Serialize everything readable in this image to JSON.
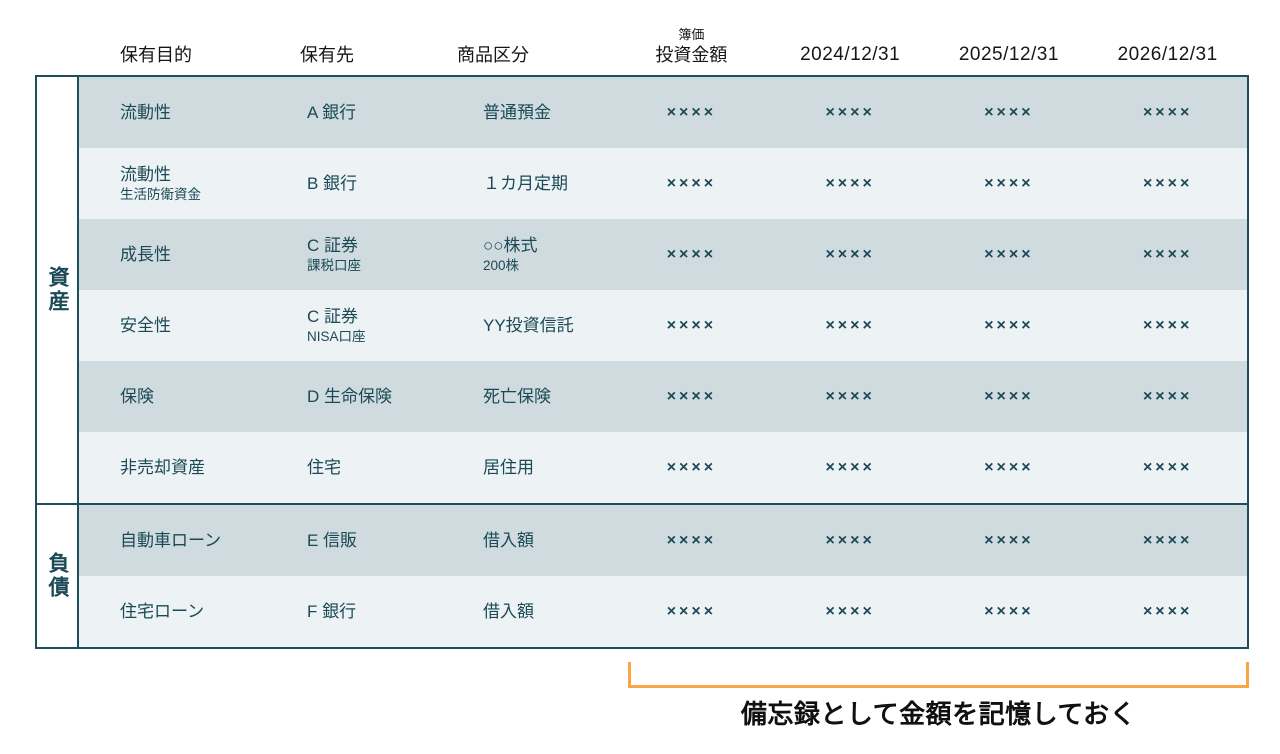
{
  "header": {
    "col_purpose": "保有目的",
    "col_holder": "保有先",
    "col_product": "商品区分",
    "col_book_value_small": "簿価",
    "col_book_value": "投資金額",
    "col_date1": "2024/12/31",
    "col_date2": "2025/12/31",
    "col_date3": "2026/12/31"
  },
  "sections": [
    {
      "label": "資産",
      "rows": [
        {
          "purpose": "流動性",
          "purpose_sub": "",
          "holder": "A 銀行",
          "holder_sub": "",
          "product": "普通預金",
          "product_sub": "",
          "values": [
            "××××",
            "××××",
            "××××",
            "××××"
          ]
        },
        {
          "purpose": "流動性",
          "purpose_sub": "生活防衛資金",
          "holder": "B 銀行",
          "holder_sub": "",
          "product": "１カ月定期",
          "product_sub": "",
          "values": [
            "××××",
            "××××",
            "××××",
            "××××"
          ]
        },
        {
          "purpose": "成長性",
          "purpose_sub": "",
          "holder": "C 証券",
          "holder_sub": "課税口座",
          "product": "○○株式",
          "product_sub": "200株",
          "values": [
            "××××",
            "××××",
            "××××",
            "××××"
          ]
        },
        {
          "purpose": "安全性",
          "purpose_sub": "",
          "holder": "C 証券",
          "holder_sub": "NISA口座",
          "product": "YY投資信託",
          "product_sub": "",
          "values": [
            "××××",
            "××××",
            "××××",
            "××××"
          ]
        },
        {
          "purpose": "保険",
          "purpose_sub": "",
          "holder": "D 生命保険",
          "holder_sub": "",
          "product": "死亡保険",
          "product_sub": "",
          "values": [
            "××××",
            "××××",
            "××××",
            "××××"
          ]
        },
        {
          "purpose": "非売却資産",
          "purpose_sub": "",
          "holder": "住宅",
          "holder_sub": "",
          "product": "居住用",
          "product_sub": "",
          "values": [
            "××××",
            "××××",
            "××××",
            "××××"
          ]
        }
      ]
    },
    {
      "label": "負債",
      "rows": [
        {
          "purpose": "自動車ローン",
          "purpose_sub": "",
          "holder": "E 信販",
          "holder_sub": "",
          "product": "借入額",
          "product_sub": "",
          "values": [
            "××××",
            "××××",
            "××××",
            "××××"
          ]
        },
        {
          "purpose": "住宅ローン",
          "purpose_sub": "",
          "holder": "F 銀行",
          "holder_sub": "",
          "product": "借入額",
          "product_sub": "",
          "values": [
            "××××",
            "××××",
            "××××",
            "××××"
          ]
        }
      ]
    }
  ],
  "annotation": {
    "text": "備忘録として金額を記憶しておく"
  },
  "colors": {
    "row_dark": "#cfdbdf",
    "row_light": "#edf2f4",
    "table_border": "#1e4f5c",
    "cell_text": "#1b4a56",
    "bracket_orange": "#f9a445",
    "header_text": "#161616"
  }
}
